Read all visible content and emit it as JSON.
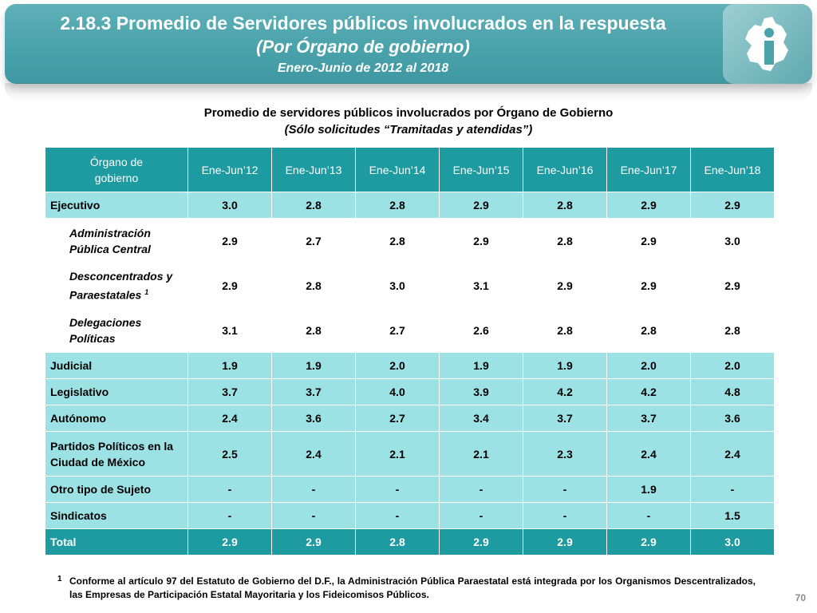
{
  "header": {
    "title": "2.18.3 Promedio de Servidores públicos involucrados en la respuesta",
    "subtitle": "(Por Órgano de gobierno)",
    "period": "Enero-Junio de 2012 al 2018",
    "logo": "cdmx-info-icon"
  },
  "caption": {
    "line1": "Promedio de servidores públicos involucrados por Órgano de Gobierno",
    "line2": "(Sólo solicitudes “Tramitadas y atendidas”)"
  },
  "table": {
    "header": {
      "first": "Órgano de gobierno",
      "years": [
        "Ene-Jun’12",
        "Ene-Jun’13",
        "Ene-Jun’14",
        "Ene-Jun’15",
        "Ene-Jun’16",
        "Ene-Jun’17",
        "Ene-Jun’18"
      ]
    },
    "rows": [
      {
        "label": "Ejecutivo",
        "values": [
          "3.0",
          "2.8",
          "2.8",
          "2.9",
          "2.8",
          "2.9",
          "2.9"
        ]
      },
      {
        "label": "Administración Pública Central",
        "values": [
          "2.9",
          "2.7",
          "2.8",
          "2.9",
          "2.8",
          "2.9",
          "3.0"
        ]
      },
      {
        "label": "Desconcentrados y Paraestatales",
        "sup": "1",
        "values": [
          "2.9",
          "2.8",
          "3.0",
          "3.1",
          "2.9",
          "2.9",
          "2.9"
        ]
      },
      {
        "label": "Delegaciones Políticas",
        "values": [
          "3.1",
          "2.8",
          "2.7",
          "2.6",
          "2.8",
          "2.8",
          "2.8"
        ]
      },
      {
        "label": "Judicial",
        "values": [
          "1.9",
          "1.9",
          "2.0",
          "1.9",
          "1.9",
          "2.0",
          "2.0"
        ]
      },
      {
        "label": "Legislativo",
        "values": [
          "3.7",
          "3.7",
          "4.0",
          "3.9",
          "4.2",
          "4.2",
          "4.8"
        ]
      },
      {
        "label": "Autónomo",
        "values": [
          "2.4",
          "3.6",
          "2.7",
          "3.4",
          "3.7",
          "3.7",
          "3.6"
        ]
      },
      {
        "label": "Partidos Políticos en la Ciudad de México",
        "values": [
          "2.5",
          "2.4",
          "2.1",
          "2.1",
          "2.3",
          "2.4",
          "2.4"
        ]
      },
      {
        "label": "Otro tipo de Sujeto",
        "values": [
          "-",
          "-",
          "-",
          "-",
          "-",
          "1.9",
          "-"
        ]
      },
      {
        "label": "Sindicatos",
        "values": [
          "-",
          "-",
          "-",
          "-",
          "-",
          "-",
          "1.5"
        ]
      },
      {
        "label": "Total",
        "values": [
          "2.9",
          "2.9",
          "2.8",
          "2.9",
          "2.9",
          "2.9",
          "3.0"
        ]
      }
    ]
  },
  "footnote": {
    "mark": "1",
    "text": "Conforme al artículo 97 del Estatuto de Gobierno del D.F., la Administración Pública Paraestatal está integrada por los Organismos Descentralizados, las Empresas de Participación Estatal Mayoritaria y los Fideicomisos Públicos."
  },
  "page_number": "70",
  "colors": {
    "banner": "#4aa2ab",
    "header_row": "#1e9aa1",
    "row_fill": "#9ce1e3"
  }
}
